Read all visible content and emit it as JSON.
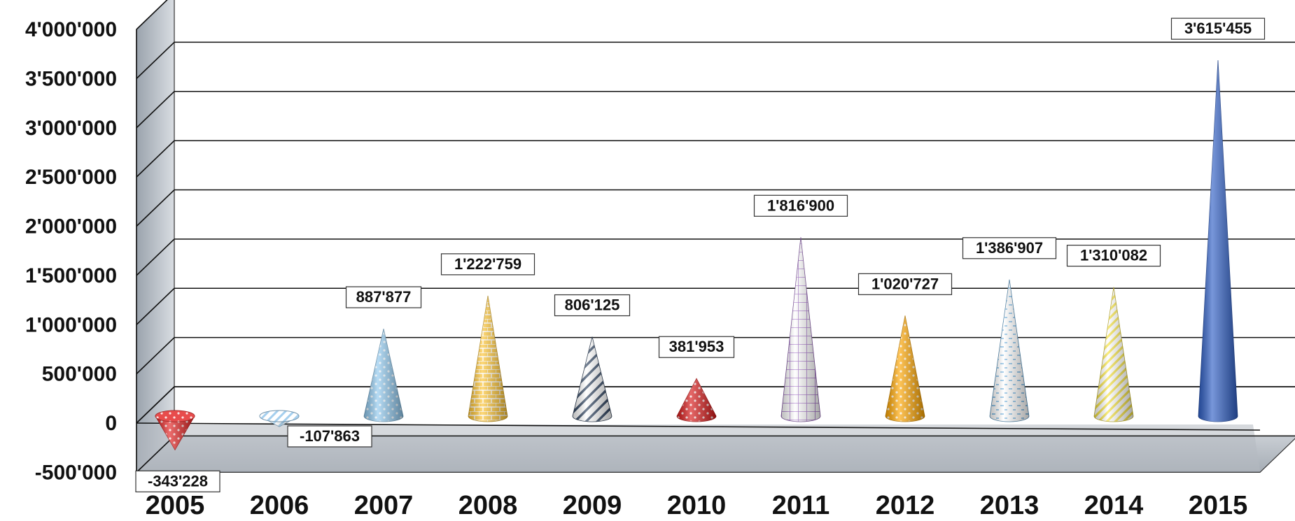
{
  "chart_data": {
    "type": "bar",
    "shape": "cone-3d",
    "categories": [
      "2005",
      "2006",
      "2007",
      "2008",
      "2009",
      "2010",
      "2011",
      "2012",
      "2013",
      "2014",
      "2015"
    ],
    "values": [
      -343228,
      -107863,
      887877,
      1222759,
      806125,
      381953,
      1816900,
      1020727,
      1386907,
      1310082,
      3615455
    ],
    "data_labels": [
      "-343'228",
      "-107'863",
      "887'877",
      "1'222'759",
      "806'125",
      "381'953",
      "1'816'900",
      "1'020'727",
      "1'386'907",
      "1'310'082",
      "3'615'455"
    ],
    "ylim": [
      -500000,
      4000000
    ],
    "yticks": [
      -500000,
      0,
      500000,
      1000000,
      1500000,
      2000000,
      2500000,
      3000000,
      3500000,
      4000000
    ],
    "ytick_labels": [
      "-500'000",
      "0",
      "500'000",
      "1'000'000",
      "1'500'000",
      "2'000'000",
      "2'500'000",
      "3'000'000",
      "3'500'000",
      "4'000'000"
    ],
    "grid": true,
    "legend": "none",
    "title": "",
    "xlabel": "",
    "ylabel": "",
    "colors": [
      "#e32020",
      "#8fc4ea",
      "#8fc8ee",
      "#ffc531",
      "#2a3f5c",
      "#d81818",
      "#9a5fc4",
      "#ffa600",
      "#5aa6dc",
      "#f6e23a",
      "#2f5fc6"
    ],
    "patterns": [
      "dots",
      "diagonal",
      "dots",
      "brick",
      "stripe-wide",
      "dots",
      "grid",
      "dots",
      "dash",
      "stripe",
      "solid"
    ]
  }
}
